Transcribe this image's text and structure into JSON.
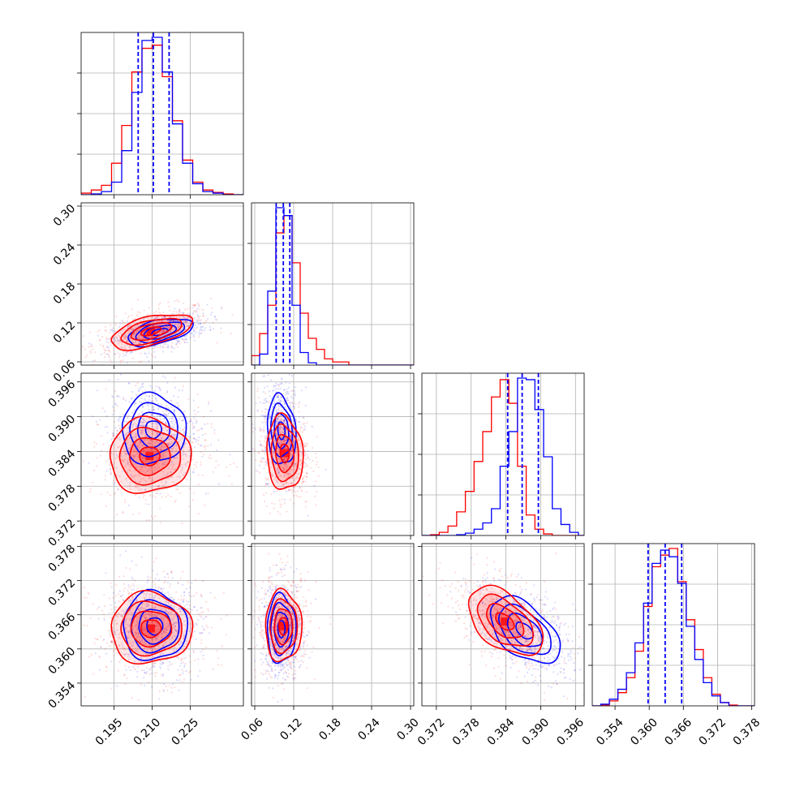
{
  "chart_data": {
    "type": "corner",
    "grid": true,
    "parameters": 4,
    "series": [
      {
        "color_name": "blue",
        "color": "#0000ff"
      },
      {
        "color_name": "red",
        "color": "#ff0000"
      }
    ],
    "axes": [
      {
        "index": 0,
        "range": [
          0.182,
          0.246
        ],
        "tick_labels": [
          "0.195",
          "0.210",
          "0.225"
        ],
        "ticks": [
          0.195,
          0.21,
          0.225
        ]
      },
      {
        "index": 1,
        "range": [
          0.055,
          0.305
        ],
        "tick_labels": [
          "0.06",
          "0.12",
          "0.18",
          "0.24",
          "0.30"
        ],
        "ticks": [
          0.06,
          0.12,
          0.18,
          0.24,
          0.3
        ]
      },
      {
        "index": 2,
        "range": [
          0.3695,
          0.3975
        ],
        "tick_labels": [
          "0.372",
          "0.378",
          "0.384",
          "0.390",
          "0.396"
        ],
        "ticks": [
          0.372,
          0.378,
          0.384,
          0.39,
          0.396
        ]
      },
      {
        "index": 3,
        "range": [
          0.35,
          0.3785
        ],
        "tick_labels": [
          "0.354",
          "0.360",
          "0.366",
          "0.372",
          "0.378"
        ],
        "ticks": [
          0.354,
          0.36,
          0.366,
          0.372,
          0.378
        ]
      }
    ],
    "quantile_lines": [
      {
        "param": 0,
        "values": [
          0.2045,
          0.2105,
          0.2167
        ]
      },
      {
        "param": 1,
        "values": [
          0.093,
          0.104,
          0.114
        ]
      },
      {
        "param": 2,
        "values": [
          0.3843,
          0.3868,
          0.3896
        ]
      },
      {
        "param": 3,
        "values": [
          0.3598,
          0.3628,
          0.3657
        ]
      }
    ],
    "histograms": [
      {
        "param": 0,
        "bin_edges": [
          0.182,
          0.186,
          0.19,
          0.194,
          0.198,
          0.202,
          0.206,
          0.21,
          0.214,
          0.218,
          0.222,
          0.226,
          0.23,
          0.234,
          0.238,
          0.242,
          0.246
        ],
        "blue": [
          0.0,
          0.005,
          0.02,
          0.08,
          0.28,
          0.65,
          0.98,
          1.0,
          0.78,
          0.45,
          0.2,
          0.07,
          0.02,
          0.01,
          0.0,
          0.0
        ],
        "red": [
          0.01,
          0.03,
          0.06,
          0.2,
          0.44,
          0.78,
          0.93,
          0.95,
          0.75,
          0.47,
          0.22,
          0.08,
          0.03,
          0.015,
          0.005,
          0.0
        ]
      },
      {
        "param": 1,
        "bin_edges": [
          0.055,
          0.0675,
          0.08,
          0.0925,
          0.105,
          0.1175,
          0.13,
          0.1425,
          0.155,
          0.1675,
          0.18,
          0.1925,
          0.205,
          0.2175,
          0.23,
          0.2425,
          0.255,
          0.2675,
          0.28,
          0.2925,
          0.305
        ],
        "blue": [
          0.0,
          0.07,
          0.47,
          1.0,
          0.95,
          0.38,
          0.08,
          0.015,
          0.0,
          0.0,
          0.0,
          0.0,
          0.0,
          0.0,
          0.0,
          0.0,
          0.0,
          0.0,
          0.0,
          0.0
        ],
        "red": [
          0.06,
          0.2,
          0.38,
          0.84,
          0.95,
          0.65,
          0.33,
          0.17,
          0.1,
          0.04,
          0.02,
          0.02,
          0.0,
          0.0,
          0.0,
          0.0,
          0.0,
          0.0,
          0.0,
          0.0
        ]
      },
      {
        "param": 2,
        "bin_edges": [
          0.3695,
          0.371,
          0.3725,
          0.374,
          0.3755,
          0.377,
          0.3785,
          0.38,
          0.3815,
          0.383,
          0.3845,
          0.386,
          0.3875,
          0.389,
          0.3905,
          0.392,
          0.3935,
          0.395,
          0.3965,
          0.3975
        ],
        "blue": [
          0.0,
          0.0,
          0.0,
          0.0,
          0.005,
          0.015,
          0.04,
          0.08,
          0.17,
          0.44,
          0.66,
          1.0,
          0.99,
          0.8,
          0.5,
          0.17,
          0.07,
          0.02,
          0.0
        ],
        "red": [
          0.0,
          0.005,
          0.02,
          0.06,
          0.15,
          0.28,
          0.47,
          0.66,
          0.88,
          0.99,
          0.84,
          0.44,
          0.13,
          0.04,
          0.01,
          0.0,
          0.0,
          0.0,
          0.0
        ]
      },
      {
        "param": 3,
        "bin_edges": [
          0.35,
          0.3515,
          0.353,
          0.3545,
          0.356,
          0.3575,
          0.359,
          0.3605,
          0.362,
          0.3635,
          0.365,
          0.3665,
          0.368,
          0.3695,
          0.371,
          0.3725,
          0.374,
          0.3755,
          0.377,
          0.3785
        ],
        "blue": [
          0.0,
          0.01,
          0.04,
          0.1,
          0.2,
          0.38,
          0.62,
          0.86,
          0.94,
          0.9,
          0.74,
          0.48,
          0.28,
          0.14,
          0.06,
          0.02,
          0.0,
          0.0,
          0.0
        ],
        "red": [
          0.0,
          0.005,
          0.03,
          0.08,
          0.17,
          0.33,
          0.6,
          0.84,
          0.91,
          0.95,
          0.75,
          0.52,
          0.34,
          0.17,
          0.07,
          0.02,
          0.005,
          0.0,
          0.0
        ]
      }
    ],
    "pairs": [
      {
        "x_param": 0,
        "y_param": 1,
        "blue": {
          "center": [
            0.213,
            0.106
          ],
          "sigma": [
            0.0064,
            0.0105
          ],
          "rho": 0.5
        },
        "red": {
          "center": [
            0.2095,
            0.107
          ],
          "sigma": [
            0.008,
            0.0135
          ],
          "rho": 0.55
        }
      },
      {
        "x_param": 0,
        "y_param": 2,
        "blue": {
          "center": [
            0.2105,
            0.3878
          ],
          "sigma": [
            0.0063,
            0.003
          ],
          "rho": 0.0
        },
        "red": {
          "center": [
            0.209,
            0.3832
          ],
          "sigma": [
            0.008,
            0.0032
          ],
          "rho": 0.0
        }
      },
      {
        "x_param": 1,
        "y_param": 2,
        "blue": {
          "center": [
            0.101,
            0.3876
          ],
          "sigma": [
            0.011,
            0.003
          ],
          "rho": -0.15
        },
        "red": {
          "center": [
            0.106,
            0.3837
          ],
          "sigma": [
            0.014,
            0.0032
          ],
          "rho": -0.1
        }
      },
      {
        "x_param": 0,
        "y_param": 3,
        "blue": {
          "center": [
            0.211,
            0.364
          ],
          "sigma": [
            0.0063,
            0.003
          ],
          "rho": 0.0
        },
        "red": {
          "center": [
            0.2095,
            0.3636
          ],
          "sigma": [
            0.008,
            0.0031
          ],
          "rho": 0.0
        }
      },
      {
        "x_param": 1,
        "y_param": 3,
        "blue": {
          "center": [
            0.101,
            0.3635
          ],
          "sigma": [
            0.011,
            0.003
          ],
          "rho": 0.0
        },
        "red": {
          "center": [
            0.104,
            0.364
          ],
          "sigma": [
            0.014,
            0.0031
          ],
          "rho": 0.0
        }
      },
      {
        "x_param": 2,
        "y_param": 3,
        "blue": {
          "center": [
            0.3872,
            0.3632
          ],
          "sigma": [
            0.003,
            0.0029
          ],
          "rho": -0.5
        },
        "red": {
          "center": [
            0.3838,
            0.3648
          ],
          "sigma": [
            0.0032,
            0.003
          ],
          "rho": -0.5
        }
      }
    ]
  }
}
